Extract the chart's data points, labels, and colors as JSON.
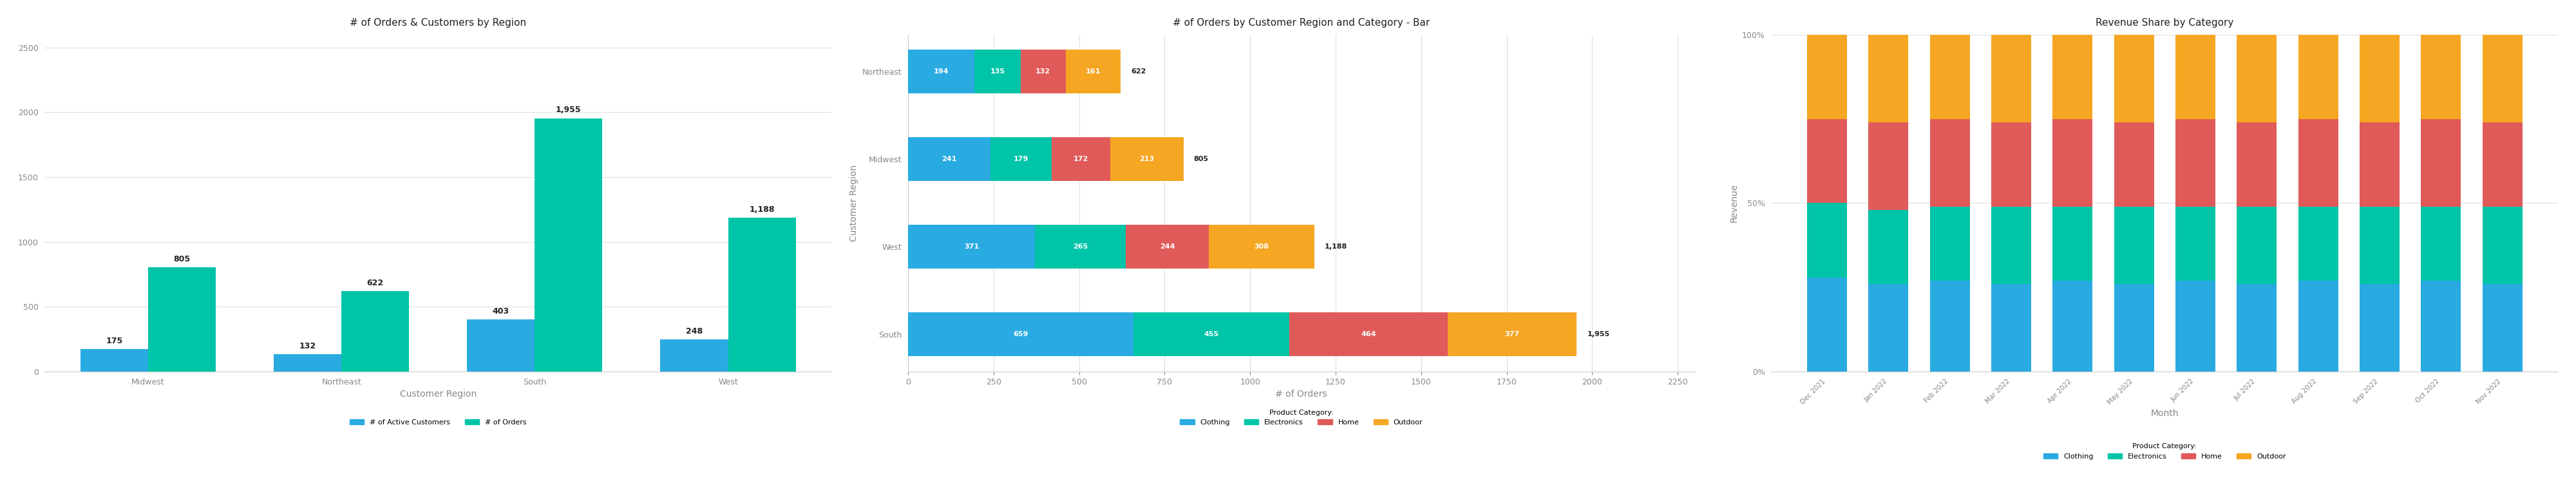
{
  "chart1": {
    "title": "# of Orders & Customers by Region",
    "xlabel": "Customer Region",
    "ylabel": "",
    "regions": [
      "Midwest",
      "Northeast",
      "South",
      "West"
    ],
    "active_customers": [
      175,
      132,
      403,
      248
    ],
    "orders": [
      805,
      622,
      1955,
      1188
    ],
    "customer_color": "#29ABE2",
    "orders_color": "#00C4A7",
    "ylim": [
      0,
      2600
    ],
    "yticks": [
      0,
      500,
      1000,
      1500,
      2000,
      2500
    ],
    "legend_labels": [
      "# of Active Customers",
      "# of Orders"
    ]
  },
  "chart2": {
    "title": "# of Orders by Customer Region and Category - Bar",
    "ylabel": "Customer Region",
    "xlabel": "# of Orders",
    "regions": [
      "South",
      "West",
      "Midwest",
      "Northeast"
    ],
    "clothing": [
      659,
      371,
      241,
      194
    ],
    "electronics": [
      455,
      265,
      179,
      135
    ],
    "home": [
      464,
      244,
      172,
      132
    ],
    "outdoor": [
      377,
      308,
      213,
      161
    ],
    "totals": [
      1955,
      1188,
      805,
      622
    ],
    "colors": {
      "Clothing": "#29ABE2",
      "Electronics": "#00C4A7",
      "Home": "#E05A5A",
      "Outdoor": "#F5A623"
    },
    "xlim": [
      0,
      2300
    ],
    "xticks": [
      0,
      250,
      500,
      750,
      1000,
      1250,
      1500,
      1750,
      2000,
      2250
    ],
    "legend_labels": [
      "Clothing",
      "Electronics",
      "Home",
      "Outdoor"
    ]
  },
  "chart3": {
    "title": "Revenue Share by Category",
    "ylabel": "Revenue",
    "xlabel": "Month",
    "months": [
      "Dec 2021",
      "Jan 2022",
      "Feb 2022",
      "Mar 2022",
      "Apr 2022",
      "May 2022",
      "Jun 2022",
      "Jul 2022",
      "Aug 2022",
      "Sep 2022",
      "Oct 2022",
      "Nov 2022"
    ],
    "clothing_pct": [
      28,
      26,
      27,
      26,
      27,
      26,
      27,
      26,
      27,
      26,
      27,
      26
    ],
    "electronics_pct": [
      22,
      22,
      22,
      23,
      22,
      23,
      22,
      23,
      22,
      23,
      22,
      23
    ],
    "home_pct": [
      25,
      26,
      26,
      25,
      26,
      25,
      26,
      25,
      26,
      25,
      26,
      25
    ],
    "outdoor_pct": [
      25,
      26,
      25,
      26,
      25,
      26,
      25,
      26,
      25,
      26,
      25,
      26
    ],
    "colors": {
      "Clothing": "#29ABE2",
      "Electronics": "#00C4A7",
      "Home": "#E05A5A",
      "Outdoor": "#F5A623"
    },
    "yticks": [
      0,
      50,
      100
    ],
    "ytick_labels": [
      "0%",
      "50%",
      "100%"
    ],
    "legend_labels": [
      "Clothing",
      "Electronics",
      "Home",
      "Outdoor"
    ]
  },
  "bg_color": "#FFFFFF",
  "text_color": "#888888",
  "label_color": "#222222"
}
